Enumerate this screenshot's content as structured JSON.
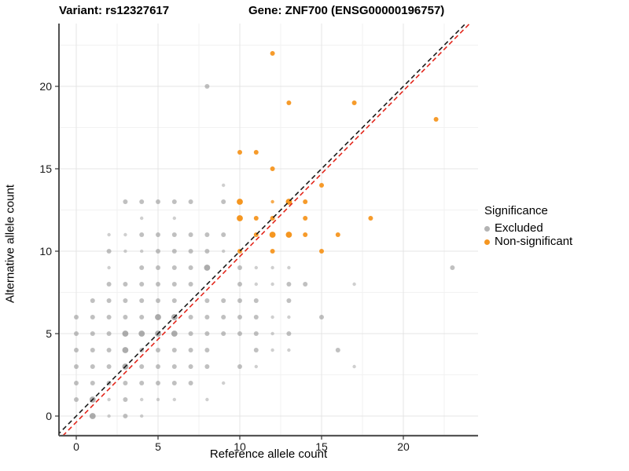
{
  "titles": {
    "variant": "Variant: rs12327617",
    "gene": "Gene: ZNF700 (ENSG00000196757)"
  },
  "legend": {
    "title": "Significance",
    "items": [
      {
        "label": "Excluded",
        "color": "#B3B3B3"
      },
      {
        "label": "Non-significant",
        "color": "#F59620"
      }
    ]
  },
  "chart_data": {
    "type": "scatter",
    "xlabel": "Reference allele count",
    "ylabel": "Alternative allele count",
    "xlim": [
      -1,
      25.4
    ],
    "ylim": [
      -1,
      24
    ],
    "x_ticks": [
      0,
      5,
      10,
      15,
      20
    ],
    "y_ticks": [
      0,
      5,
      10,
      15,
      20
    ],
    "grid": "major+minor",
    "legend_position": "right",
    "series": [
      {
        "name": "Excluded",
        "color": "#8C8C8C",
        "points": [
          [
            1,
            0,
            "l"
          ],
          [
            2,
            0,
            "s"
          ],
          [
            3,
            0,
            "m"
          ],
          [
            4,
            0,
            "s"
          ],
          [
            0,
            1,
            "m"
          ],
          [
            1,
            1,
            "l"
          ],
          [
            2,
            1,
            "s"
          ],
          [
            3,
            1,
            "m"
          ],
          [
            4,
            1,
            "s"
          ],
          [
            5,
            1,
            "s"
          ],
          [
            6,
            1,
            "s"
          ],
          [
            8,
            1,
            "s"
          ],
          [
            0,
            2,
            "m"
          ],
          [
            1,
            2,
            "m"
          ],
          [
            2,
            2,
            "m"
          ],
          [
            3,
            2,
            "m"
          ],
          [
            4,
            2,
            "m"
          ],
          [
            5,
            2,
            "m"
          ],
          [
            6,
            2,
            "m"
          ],
          [
            7,
            2,
            "m"
          ],
          [
            9,
            2,
            "s"
          ],
          [
            0,
            3,
            "m"
          ],
          [
            1,
            3,
            "m"
          ],
          [
            2,
            3,
            "m"
          ],
          [
            3,
            3,
            "l"
          ],
          [
            4,
            3,
            "m"
          ],
          [
            5,
            3,
            "m"
          ],
          [
            6,
            3,
            "m"
          ],
          [
            7,
            3,
            "m"
          ],
          [
            8,
            3,
            "m"
          ],
          [
            10,
            3,
            "m"
          ],
          [
            11,
            3,
            "s"
          ],
          [
            17,
            3,
            "s"
          ],
          [
            0,
            4,
            "m"
          ],
          [
            1,
            4,
            "m"
          ],
          [
            2,
            4,
            "m"
          ],
          [
            3,
            4,
            "l"
          ],
          [
            4,
            4,
            "m"
          ],
          [
            5,
            4,
            "m"
          ],
          [
            6,
            4,
            "m"
          ],
          [
            7,
            4,
            "m"
          ],
          [
            8,
            4,
            "m"
          ],
          [
            11,
            4,
            "m"
          ],
          [
            12,
            4,
            "s"
          ],
          [
            13,
            4,
            "s"
          ],
          [
            16,
            4,
            "m"
          ],
          [
            0,
            5,
            "m"
          ],
          [
            1,
            5,
            "m"
          ],
          [
            2,
            5,
            "m"
          ],
          [
            3,
            5,
            "l"
          ],
          [
            4,
            5,
            "l"
          ],
          [
            5,
            5,
            "l"
          ],
          [
            6,
            5,
            "l"
          ],
          [
            7,
            5,
            "m"
          ],
          [
            8,
            5,
            "m"
          ],
          [
            9,
            5,
            "m"
          ],
          [
            10,
            5,
            "m"
          ],
          [
            11,
            5,
            "m"
          ],
          [
            12,
            5,
            "s"
          ],
          [
            13,
            5,
            "m"
          ],
          [
            0,
            6,
            "m"
          ],
          [
            1,
            6,
            "m"
          ],
          [
            2,
            6,
            "m"
          ],
          [
            3,
            6,
            "m"
          ],
          [
            4,
            6,
            "m"
          ],
          [
            5,
            6,
            "l"
          ],
          [
            6,
            6,
            "l"
          ],
          [
            7,
            6,
            "m"
          ],
          [
            8,
            6,
            "m"
          ],
          [
            9,
            6,
            "m"
          ],
          [
            10,
            6,
            "m"
          ],
          [
            11,
            6,
            "m"
          ],
          [
            12,
            6,
            "s"
          ],
          [
            13,
            6,
            "s"
          ],
          [
            15,
            6,
            "m"
          ],
          [
            1,
            7,
            "m"
          ],
          [
            2,
            7,
            "m"
          ],
          [
            3,
            7,
            "m"
          ],
          [
            4,
            7,
            "m"
          ],
          [
            5,
            7,
            "m"
          ],
          [
            6,
            7,
            "m"
          ],
          [
            8,
            7,
            "m"
          ],
          [
            9,
            7,
            "m"
          ],
          [
            10,
            7,
            "m"
          ],
          [
            11,
            7,
            "m"
          ],
          [
            13,
            7,
            "m"
          ],
          [
            2,
            8,
            "m"
          ],
          [
            3,
            8,
            "m"
          ],
          [
            4,
            8,
            "m"
          ],
          [
            5,
            8,
            "m"
          ],
          [
            6,
            8,
            "m"
          ],
          [
            7,
            8,
            "m"
          ],
          [
            10,
            8,
            "m"
          ],
          [
            11,
            8,
            "s"
          ],
          [
            12,
            8,
            "s"
          ],
          [
            13,
            8,
            "m"
          ],
          [
            14,
            8,
            "m"
          ],
          [
            17,
            8,
            "s"
          ],
          [
            2,
            9,
            "s"
          ],
          [
            4,
            9,
            "m"
          ],
          [
            5,
            9,
            "m"
          ],
          [
            6,
            9,
            "m"
          ],
          [
            7,
            9,
            "m"
          ],
          [
            8,
            9,
            "l"
          ],
          [
            10,
            9,
            "m"
          ],
          [
            11,
            9,
            "s"
          ],
          [
            12,
            9,
            "s"
          ],
          [
            13,
            9,
            "s"
          ],
          [
            23,
            9,
            "m"
          ],
          [
            2,
            10,
            "m"
          ],
          [
            3,
            10,
            "s"
          ],
          [
            4,
            10,
            "s"
          ],
          [
            5,
            10,
            "m"
          ],
          [
            6,
            10,
            "m"
          ],
          [
            7,
            10,
            "m"
          ],
          [
            8,
            10,
            "m"
          ],
          [
            9,
            10,
            "s"
          ],
          [
            2,
            11,
            "s"
          ],
          [
            3,
            11,
            "s"
          ],
          [
            4,
            11,
            "m"
          ],
          [
            5,
            11,
            "m"
          ],
          [
            6,
            11,
            "m"
          ],
          [
            7,
            11,
            "m"
          ],
          [
            8,
            11,
            "m"
          ],
          [
            9,
            11,
            "m"
          ],
          [
            4,
            12,
            "s"
          ],
          [
            6,
            12,
            "s"
          ],
          [
            3,
            13,
            "m"
          ],
          [
            4,
            13,
            "m"
          ],
          [
            5,
            13,
            "m"
          ],
          [
            6,
            13,
            "m"
          ],
          [
            7,
            13,
            "m"
          ],
          [
            9,
            13,
            "m"
          ],
          [
            9,
            14,
            "s"
          ],
          [
            8,
            20,
            "m"
          ]
        ]
      },
      {
        "name": "Non-significant",
        "color": "#F59620",
        "points": [
          [
            10,
            10,
            "m"
          ],
          [
            12,
            10,
            "m"
          ],
          [
            15,
            10,
            "m"
          ],
          [
            11,
            11,
            "m"
          ],
          [
            12,
            11,
            "l"
          ],
          [
            13,
            11,
            "l"
          ],
          [
            14,
            11,
            "m"
          ],
          [
            16,
            11,
            "m"
          ],
          [
            10,
            12,
            "l"
          ],
          [
            11,
            12,
            "m"
          ],
          [
            12,
            12,
            "m"
          ],
          [
            14,
            12,
            "m"
          ],
          [
            18,
            12,
            "m"
          ],
          [
            10,
            13,
            "l"
          ],
          [
            12,
            13,
            "s"
          ],
          [
            13,
            13,
            "l"
          ],
          [
            14,
            13,
            "m"
          ],
          [
            15,
            14,
            "m"
          ],
          [
            12,
            15,
            "m"
          ],
          [
            10,
            16,
            "m"
          ],
          [
            11,
            16,
            "m"
          ],
          [
            22,
            18,
            "m"
          ],
          [
            13,
            19,
            "m"
          ],
          [
            17,
            19,
            "m"
          ],
          [
            12,
            22,
            "m"
          ]
        ]
      }
    ],
    "lines": [
      {
        "name": "identity-line",
        "style": "dashed",
        "color": "#1A1A1A",
        "slope": 1,
        "intercept": 0
      },
      {
        "name": "fit-line",
        "style": "dashed",
        "color": "#E3261B",
        "slope": 1.005,
        "intercept": -0.37
      }
    ]
  }
}
